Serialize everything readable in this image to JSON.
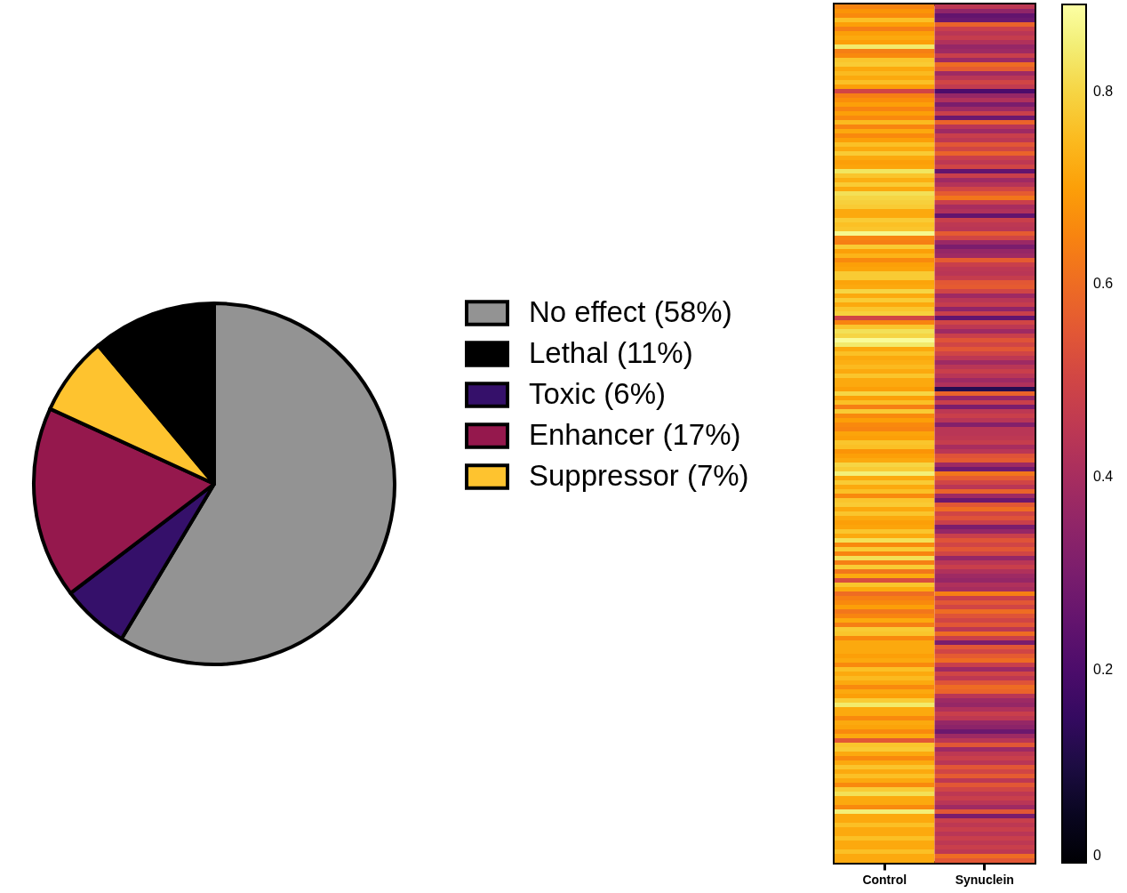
{
  "chart_data": [
    {
      "type": "pie",
      "categories": [
        "No effect (58%)",
        "Lethal (11%)",
        "Toxic (6%)",
        "Enhancer (17%)",
        "Suppressor (7%)"
      ],
      "values": [
        58,
        11,
        6,
        17,
        7
      ],
      "colors": [
        "#939393",
        "#000000",
        "#35106a",
        "#95184d",
        "#fec32f"
      ],
      "legend": "right"
    },
    {
      "type": "heatmap",
      "categories": [
        "Control",
        "Synuclein"
      ],
      "tick_labels": "x",
      "clim": [
        0,
        0.89
      ],
      "cticks": [
        0,
        0.2,
        0.4,
        0.6,
        0.8
      ],
      "y_categories": [
        null,
        null,
        null,
        null,
        null,
        null,
        null,
        null,
        null,
        null,
        null,
        null,
        null,
        null,
        null,
        null,
        null,
        null,
        null,
        null,
        null,
        null,
        null,
        null,
        null,
        null,
        null,
        null,
        null,
        null,
        null,
        null,
        null,
        null,
        null,
        null,
        null,
        null,
        null,
        null,
        null,
        null,
        null,
        null,
        null,
        null,
        null,
        null,
        null,
        null,
        null,
        null,
        null,
        null,
        null,
        null,
        null,
        null,
        null,
        null,
        null,
        null,
        null,
        null,
        null,
        null,
        null,
        null,
        null,
        null,
        null,
        null,
        null,
        null,
        null,
        null,
        null,
        null,
        null,
        null,
        null,
        null,
        null,
        null,
        null,
        null,
        null,
        null,
        null,
        null,
        null,
        null,
        null,
        null,
        null,
        null,
        null,
        null,
        null,
        null,
        null,
        null,
        null,
        null,
        null,
        null,
        null,
        null,
        null,
        null,
        null,
        null,
        null,
        null,
        null,
        null,
        null,
        null,
        null,
        null,
        null,
        null,
        null,
        null,
        null,
        null,
        null,
        null,
        null,
        null,
        null,
        null,
        null,
        null,
        null,
        null,
        null,
        null,
        null,
        null,
        null,
        null,
        null,
        null,
        null,
        null,
        null,
        null,
        null,
        null,
        null,
        null,
        null,
        null,
        null,
        null,
        null,
        null,
        null,
        null,
        null,
        null,
        null,
        null,
        null,
        null,
        null,
        null,
        null,
        null,
        null,
        null,
        null,
        null,
        null,
        null,
        null,
        null,
        null,
        null,
        null,
        null,
        null,
        null,
        null,
        null,
        null,
        null,
        null,
        null,
        null,
        null,
        null
      ],
      "cells": [
        [
          0.65,
          0.45
        ],
        [
          0.68,
          0.35
        ],
        [
          0.66,
          0.25
        ],
        [
          0.76,
          0.27
        ],
        [
          0.7,
          0.58
        ],
        [
          0.64,
          0.48
        ],
        [
          0.7,
          0.44
        ],
        [
          0.72,
          0.47
        ],
        [
          0.7,
          0.42
        ],
        [
          0.84,
          0.36
        ],
        [
          0.64,
          0.38
        ],
        [
          0.66,
          0.48
        ],
        [
          0.77,
          0.38
        ],
        [
          0.78,
          0.6
        ],
        [
          0.72,
          0.56
        ],
        [
          0.75,
          0.38
        ],
        [
          0.72,
          0.44
        ],
        [
          0.76,
          0.5
        ],
        [
          0.7,
          0.46
        ],
        [
          0.5,
          0.2
        ],
        [
          0.64,
          0.36
        ],
        [
          0.67,
          0.42
        ],
        [
          0.7,
          0.3
        ],
        [
          0.65,
          0.38
        ],
        [
          0.7,
          0.48
        ],
        [
          0.66,
          0.27
        ],
        [
          0.75,
          0.58
        ],
        [
          0.65,
          0.44
        ],
        [
          0.72,
          0.38
        ],
        [
          0.66,
          0.48
        ],
        [
          0.7,
          0.45
        ],
        [
          0.76,
          0.55
        ],
        [
          0.72,
          0.5
        ],
        [
          0.78,
          0.58
        ],
        [
          0.72,
          0.48
        ],
        [
          0.7,
          0.45
        ],
        [
          0.71,
          0.5
        ],
        [
          0.83,
          0.25
        ],
        [
          0.77,
          0.48
        ],
        [
          0.73,
          0.38
        ],
        [
          0.78,
          0.43
        ],
        [
          0.72,
          0.5
        ],
        [
          0.82,
          0.56
        ],
        [
          0.8,
          0.62
        ],
        [
          0.79,
          0.48
        ],
        [
          0.78,
          0.4
        ],
        [
          0.72,
          0.42
        ],
        [
          0.72,
          0.25
        ],
        [
          0.78,
          0.48
        ],
        [
          0.76,
          0.45
        ],
        [
          0.77,
          0.44
        ],
        [
          0.87,
          0.56
        ],
        [
          0.65,
          0.5
        ],
        [
          0.64,
          0.37
        ],
        [
          0.78,
          0.3
        ],
        [
          0.7,
          0.36
        ],
        [
          0.74,
          0.38
        ],
        [
          0.66,
          0.56
        ],
        [
          0.7,
          0.48
        ],
        [
          0.71,
          0.45
        ],
        [
          0.78,
          0.44
        ],
        [
          0.78,
          0.47
        ],
        [
          0.71,
          0.55
        ],
        [
          0.72,
          0.56
        ],
        [
          0.8,
          0.5
        ],
        [
          0.72,
          0.38
        ],
        [
          0.78,
          0.44
        ],
        [
          0.72,
          0.47
        ],
        [
          0.77,
          0.35
        ],
        [
          0.79,
          0.48
        ],
        [
          0.5,
          0.25
        ],
        [
          0.65,
          0.5
        ],
        [
          0.77,
          0.45
        ],
        [
          0.82,
          0.38
        ],
        [
          0.8,
          0.48
        ],
        [
          0.88,
          0.54
        ],
        [
          0.84,
          0.5
        ],
        [
          0.72,
          0.55
        ],
        [
          0.76,
          0.5
        ],
        [
          0.72,
          0.45
        ],
        [
          0.73,
          0.38
        ],
        [
          0.75,
          0.44
        ],
        [
          0.72,
          0.48
        ],
        [
          0.77,
          0.44
        ],
        [
          0.72,
          0.38
        ],
        [
          0.72,
          0.42
        ],
        [
          0.7,
          0.12
        ],
        [
          0.8,
          0.58
        ],
        [
          0.7,
          0.36
        ],
        [
          0.76,
          0.48
        ],
        [
          0.64,
          0.3
        ],
        [
          0.78,
          0.45
        ],
        [
          0.66,
          0.48
        ],
        [
          0.7,
          0.44
        ],
        [
          0.66,
          0.32
        ],
        [
          0.65,
          0.44
        ],
        [
          0.71,
          0.44
        ],
        [
          0.7,
          0.45
        ],
        [
          0.77,
          0.47
        ],
        [
          0.76,
          0.4
        ],
        [
          0.68,
          0.44
        ],
        [
          0.7,
          0.54
        ],
        [
          0.72,
          0.56
        ],
        [
          0.8,
          0.38
        ],
        [
          0.78,
          0.28
        ],
        [
          0.85,
          0.62
        ],
        [
          0.72,
          0.56
        ],
        [
          0.78,
          0.5
        ],
        [
          0.72,
          0.44
        ],
        [
          0.76,
          0.58
        ],
        [
          0.66,
          0.38
        ],
        [
          0.77,
          0.27
        ],
        [
          0.78,
          0.55
        ],
        [
          0.72,
          0.6
        ],
        [
          0.77,
          0.5
        ],
        [
          0.72,
          0.54
        ],
        [
          0.7,
          0.48
        ],
        [
          0.71,
          0.3
        ],
        [
          0.77,
          0.36
        ],
        [
          0.72,
          0.48
        ],
        [
          0.82,
          0.54
        ],
        [
          0.66,
          0.5
        ],
        [
          0.78,
          0.55
        ],
        [
          0.65,
          0.5
        ],
        [
          0.82,
          0.36
        ],
        [
          0.64,
          0.44
        ],
        [
          0.78,
          0.48
        ],
        [
          0.62,
          0.42
        ],
        [
          0.72,
          0.38
        ],
        [
          0.52,
          0.36
        ],
        [
          0.77,
          0.42
        ],
        [
          0.72,
          0.4
        ],
        [
          0.6,
          0.64
        ],
        [
          0.64,
          0.48
        ],
        [
          0.66,
          0.55
        ],
        [
          0.7,
          0.5
        ],
        [
          0.62,
          0.6
        ],
        [
          0.65,
          0.54
        ],
        [
          0.72,
          0.5
        ],
        [
          0.64,
          0.55
        ],
        [
          0.78,
          0.45
        ],
        [
          0.77,
          0.6
        ],
        [
          0.66,
          0.48
        ],
        [
          0.72,
          0.3
        ],
        [
          0.72,
          0.55
        ],
        [
          0.72,
          0.5
        ],
        [
          0.7,
          0.56
        ],
        [
          0.72,
          0.6
        ],
        [
          0.66,
          0.48
        ],
        [
          0.76,
          0.38
        ],
        [
          0.72,
          0.5
        ],
        [
          0.75,
          0.45
        ],
        [
          0.72,
          0.54
        ],
        [
          0.66,
          0.6
        ],
        [
          0.72,
          0.58
        ],
        [
          0.7,
          0.44
        ],
        [
          0.78,
          0.38
        ],
        [
          0.84,
          0.36
        ],
        [
          0.72,
          0.42
        ],
        [
          0.72,
          0.48
        ],
        [
          0.66,
          0.45
        ],
        [
          0.72,
          0.36
        ],
        [
          0.71,
          0.34
        ],
        [
          0.66,
          0.27
        ],
        [
          0.72,
          0.38
        ],
        [
          0.55,
          0.44
        ],
        [
          0.77,
          0.55
        ],
        [
          0.78,
          0.38
        ],
        [
          0.72,
          0.45
        ],
        [
          0.66,
          0.48
        ],
        [
          0.72,
          0.44
        ],
        [
          0.77,
          0.55
        ],
        [
          0.72,
          0.5
        ],
        [
          0.76,
          0.56
        ],
        [
          0.72,
          0.45
        ],
        [
          0.66,
          0.55
        ],
        [
          0.78,
          0.5
        ],
        [
          0.82,
          0.45
        ],
        [
          0.72,
          0.48
        ],
        [
          0.72,
          0.44
        ],
        [
          0.66,
          0.38
        ],
        [
          0.85,
          0.55
        ],
        [
          0.72,
          0.3
        ],
        [
          0.72,
          0.48
        ],
        [
          0.76,
          0.45
        ],
        [
          0.72,
          0.48
        ],
        [
          0.72,
          0.44
        ],
        [
          0.76,
          0.48
        ],
        [
          0.72,
          0.45
        ],
        [
          0.72,
          0.48
        ],
        [
          0.76,
          0.45
        ],
        [
          0.72,
          0.6
        ],
        [
          0.72,
          0.55
        ]
      ]
    }
  ]
}
